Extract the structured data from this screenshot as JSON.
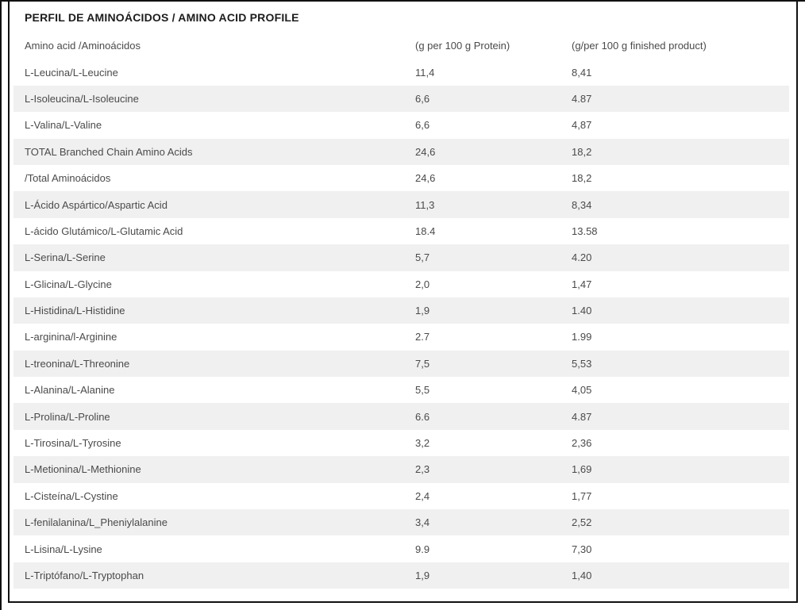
{
  "colors": {
    "background": "#ffffff",
    "border": "#111111",
    "stripe": "#f0f0f0",
    "body_text": "#4a4a4a",
    "title_text": "#1c1c1c"
  },
  "table": {
    "title": "PERFIL DE AMINOÁCIDOS / AMINO ACID PROFILE",
    "columns": [
      "Amino acid /Aminoácidos",
      "(g per 100 g Protein)",
      "(g/per 100 g finished product)"
    ],
    "rows": [
      {
        "name": "L-Leucina/L-Leucine",
        "g_per_100g_protein": "11,4",
        "g_per_100g_product": "8,41"
      },
      {
        "name": "L-Isoleucina/L-Isoleucine",
        "g_per_100g_protein": "6,6",
        "g_per_100g_product": "4.87"
      },
      {
        "name": "L-Valina/L-Valine",
        "g_per_100g_protein": "6,6",
        "g_per_100g_product": "4,87"
      },
      {
        "name": "TOTAL Branched Chain Amino Acids",
        "g_per_100g_protein": "24,6",
        "g_per_100g_product": "18,2"
      },
      {
        "name": "/Total Aminoácidos",
        "g_per_100g_protein": "24,6",
        "g_per_100g_product": "18,2"
      },
      {
        "name": "L-Ácido Aspártico/Aspartic Acid",
        "g_per_100g_protein": "11,3",
        "g_per_100g_product": "8,34"
      },
      {
        "name": "L-ácido Glutámico/L-Glutamic Acid",
        "g_per_100g_protein": "18.4",
        "g_per_100g_product": "13.58"
      },
      {
        "name": "L-Serina/L-Serine",
        "g_per_100g_protein": "5,7",
        "g_per_100g_product": "4.20"
      },
      {
        "name": "L-Glicina/L-Glycine",
        "g_per_100g_protein": "2,0",
        "g_per_100g_product": "1,47"
      },
      {
        "name": "L-Histidina/L-Histidine",
        "g_per_100g_protein": "1,9",
        "g_per_100g_product": "1.40"
      },
      {
        "name": "L-arginina/l-Arginine",
        "g_per_100g_protein": "2.7",
        "g_per_100g_product": "1.99"
      },
      {
        "name": "L-treonina/L-Threonine",
        "g_per_100g_protein": "7,5",
        "g_per_100g_product": "5,53"
      },
      {
        "name": "L-Alanina/L-Alanine",
        "g_per_100g_protein": "5,5",
        "g_per_100g_product": "4,05"
      },
      {
        "name": "L-Prolina/L-Proline",
        "g_per_100g_protein": "6.6",
        "g_per_100g_product": "4.87"
      },
      {
        "name": "L-Tirosina/L-Tyrosine",
        "g_per_100g_protein": "3,2",
        "g_per_100g_product": "2,36"
      },
      {
        "name": "L-Metionina/L-Methionine",
        "g_per_100g_protein": "2,3",
        "g_per_100g_product": "1,69"
      },
      {
        "name": "L-Cisteína/L-Cystine",
        "g_per_100g_protein": "2,4",
        "g_per_100g_product": "1,77"
      },
      {
        "name": "L-fenilalanina/L_Pheniylalanine",
        "g_per_100g_protein": "3,4",
        "g_per_100g_product": "2,52"
      },
      {
        "name": "L-Lisina/L-Lysine",
        "g_per_100g_protein": "9.9",
        "g_per_100g_product": "7,30"
      },
      {
        "name": "L-Triptófano/L-Tryptophan",
        "g_per_100g_protein": "1,9",
        "g_per_100g_product": "1,40"
      }
    ]
  }
}
